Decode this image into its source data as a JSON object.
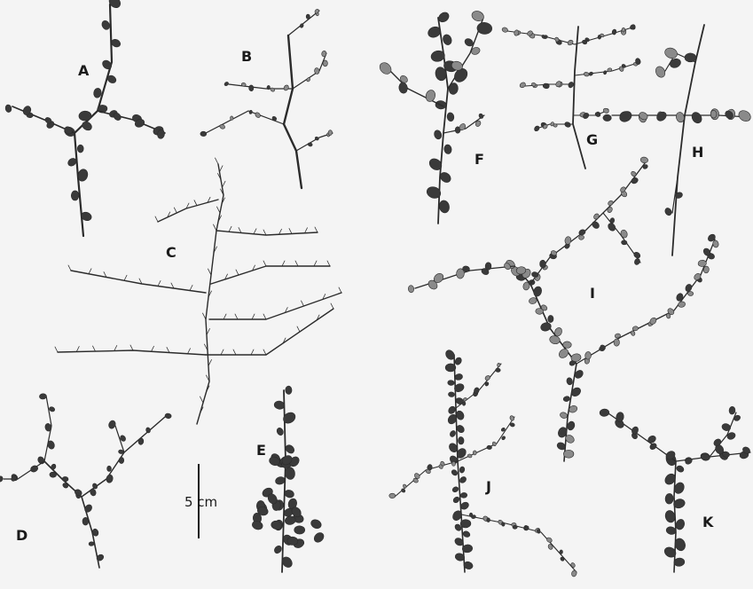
{
  "figure": {
    "panels": [
      {
        "id": "A",
        "label": "A"
      },
      {
        "id": "B",
        "label": "B"
      },
      {
        "id": "C",
        "label": "C"
      },
      {
        "id": "D",
        "label": "D"
      },
      {
        "id": "E",
        "label": "E"
      },
      {
        "id": "F",
        "label": "F"
      },
      {
        "id": "G",
        "label": "G"
      },
      {
        "id": "H",
        "label": "H"
      },
      {
        "id": "I",
        "label": "I"
      },
      {
        "id": "J",
        "label": "J"
      },
      {
        "id": "K",
        "label": "K"
      }
    ],
    "scale_bar": {
      "label": "5 cm"
    }
  },
  "colors": {
    "background": "#f4f4f4",
    "stem": "#2b2b2b",
    "leaf_dark": "#3a3a3a",
    "leaf_light": "#8a8a8a",
    "label": "#1a1a1a"
  }
}
